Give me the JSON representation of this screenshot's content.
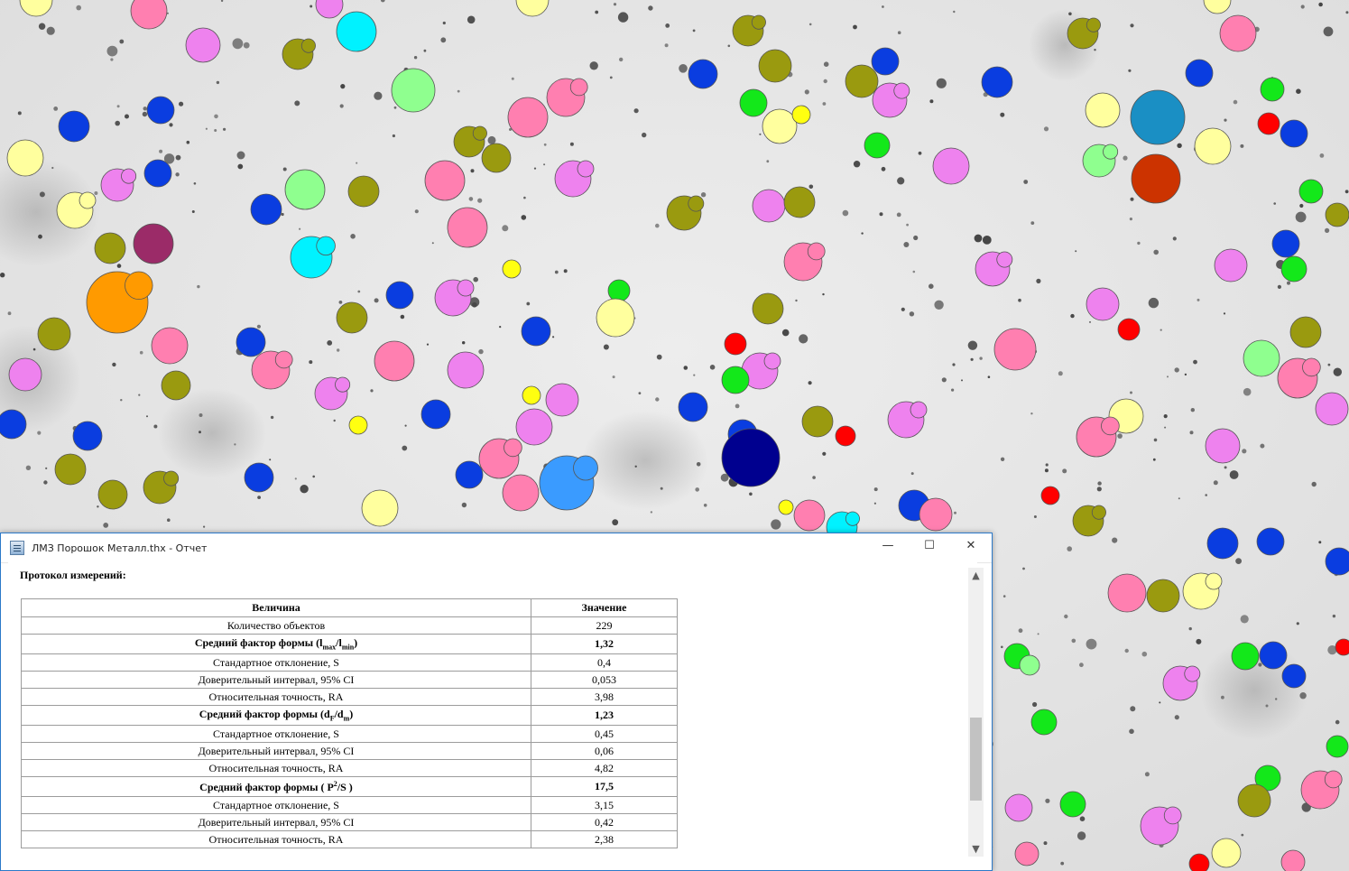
{
  "window": {
    "title": "ЛМЗ Порошок Металл.thx - Отчет",
    "controls": {
      "minimize": "—",
      "maximize": "☐",
      "close": "✕"
    }
  },
  "report": {
    "heading": "Протокол измерений:",
    "columns": [
      "Величина",
      "Значение"
    ],
    "count_row": {
      "label": "Количество объектов",
      "value": "229"
    },
    "groups": [
      {
        "label_prefix": "Средний фактор формы (l",
        "sub1": "max",
        "mid": "/l",
        "sub2": "min",
        "suffix": ")",
        "value": "1,32",
        "rows": [
          {
            "label": "Стандартное отклонение, S",
            "value": "0,4"
          },
          {
            "label": "Доверительный интервал, 95% CI",
            "value": "0,053"
          },
          {
            "label": "Относительная точность, RA",
            "value": "3,98"
          }
        ]
      },
      {
        "label_prefix": "Средний фактор формы (d",
        "sub1": "F",
        "mid": "/d",
        "sub2": "m",
        "suffix": ")",
        "value": "1,23",
        "rows": [
          {
            "label": "Стандартное отклонение, S",
            "value": "0,45"
          },
          {
            "label": "Доверительный интервал, 95% CI",
            "value": "0,06"
          },
          {
            "label": "Относительная точность, RA",
            "value": "4,82"
          }
        ]
      },
      {
        "label_prefix": "Средний фактор формы ( P",
        "sup": "2",
        "suffix": "/S )",
        "value": "17,5",
        "rows": [
          {
            "label": "Стандартное отклонение, S",
            "value": "3,15"
          },
          {
            "label": "Доверительный интервал, 95% CI",
            "value": "0,42"
          },
          {
            "label": "Относительная точность, RA",
            "value": "2,38"
          }
        ]
      }
    ]
  },
  "scrollbar": {
    "up_arrow": "chevron-up-icon",
    "down_arrow": "chevron-down-icon"
  },
  "palette": {
    "background": "#e6e6e6",
    "window_border": "#2b79c9",
    "particle_colors": [
      "#ff7fb0",
      "#ee82ee",
      "#0a3de0",
      "#9a9a0f",
      "#ffff9e",
      "#13e81a",
      "#00f2ff",
      "#8fff8f",
      "#ffff10",
      "#ff0000",
      "#ff9a00",
      "#9b2b68",
      "#3a9bff",
      "#00008f",
      "#1a8fc4",
      "#cc3300"
    ]
  }
}
